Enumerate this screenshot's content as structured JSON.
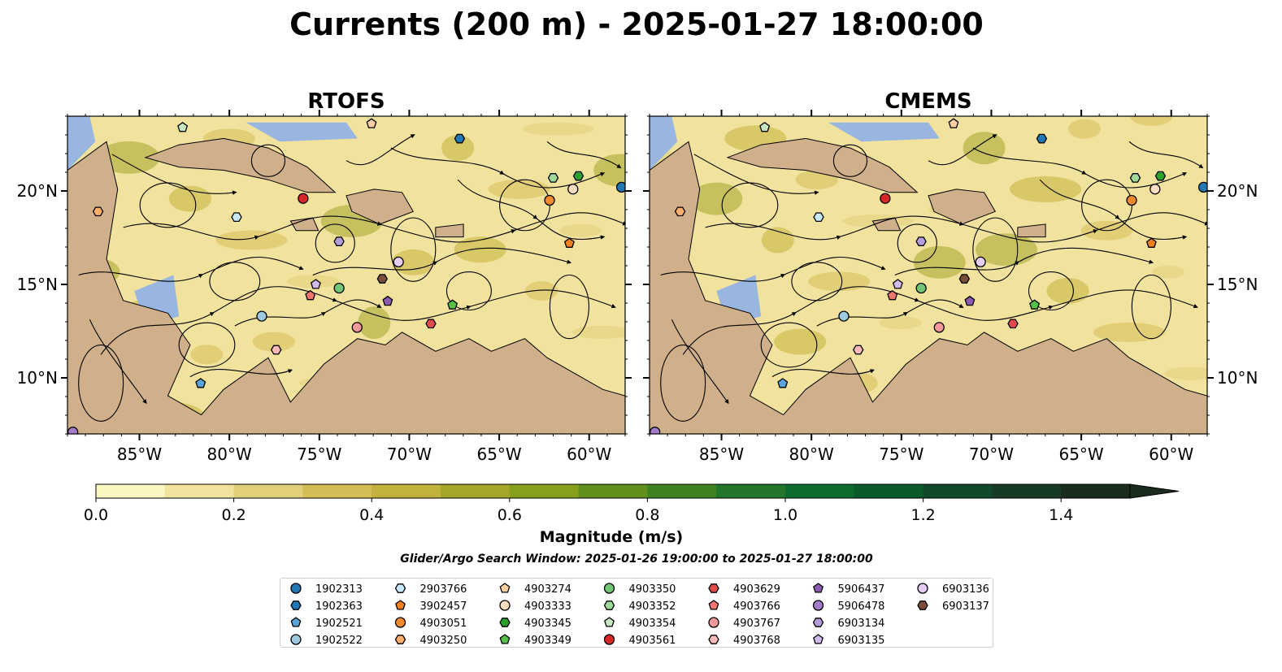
{
  "title": "Currents (200 m) - 2025-01-27 18:00:00",
  "colors": {
    "ocean": "#98b6e0",
    "land": "#cfb08a",
    "streamline": "#000000",
    "colorbar": [
      "#fbf5c2",
      "#f1e39e",
      "#e2cf7a",
      "#d3be55",
      "#c2b23d",
      "#a3a62a",
      "#86a01b",
      "#63901d",
      "#3f8320",
      "#23762a",
      "#0e6b2e",
      "#0b5a2c",
      "#104a2b",
      "#173a27",
      "#1a2c1e"
    ]
  },
  "maps": [
    {
      "title": "RTOFS"
    },
    {
      "title": "CMEMS"
    }
  ],
  "axes": {
    "lon_ticks": [
      "85°W",
      "80°W",
      "75°W",
      "70°W",
      "65°W",
      "60°W"
    ],
    "lat_ticks": [
      "20°N",
      "15°N",
      "10°N"
    ]
  },
  "colorbar": {
    "label": "Magnitude (m/s)",
    "ticks": [
      "0.0",
      "0.2",
      "0.4",
      "0.6",
      "0.8",
      "1.0",
      "1.2",
      "1.4"
    ]
  },
  "subtitle": "Glider/Argo Search Window: 2025-01-26 19:00:00 to 2025-01-27 18:00:00",
  "chart_data": {
    "type": "streamline-map",
    "panels": [
      "RTOFS",
      "CMEMS"
    ],
    "lon_range": [
      -89,
      -58
    ],
    "lat_range": [
      7,
      24
    ],
    "magnitude_range": [
      0,
      1.5
    ],
    "magnitude_levels": [
      0.0,
      0.1,
      0.2,
      0.3,
      0.4,
      0.5,
      0.6,
      0.7,
      0.8,
      0.9,
      1.0,
      1.1,
      1.2,
      1.3,
      1.4,
      1.5
    ],
    "floats": [
      {
        "id": "1902313",
        "color": "#1f77b4",
        "marker": "circle",
        "lon": -58.2,
        "lat": 20.2
      },
      {
        "id": "1902363",
        "color": "#1f77b4",
        "marker": "hexagon",
        "lon": -67.2,
        "lat": 22.8
      },
      {
        "id": "1902521",
        "color": "#5ba3d9",
        "marker": "pentagon",
        "lon": -81.6,
        "lat": 9.7
      },
      {
        "id": "1902522",
        "color": "#9ecae1",
        "marker": "circle",
        "lon": -78.2,
        "lat": 13.3
      },
      {
        "id": "2903766",
        "color": "#c6e8f7",
        "marker": "hexagon",
        "lon": -79.6,
        "lat": 18.6
      },
      {
        "id": "3902457",
        "color": "#f07f1c",
        "marker": "pentagon",
        "lon": -61.1,
        "lat": 17.2
      },
      {
        "id": "4903051",
        "color": "#f08a2c",
        "marker": "circle",
        "lon": -62.2,
        "lat": 19.5
      },
      {
        "id": "4903250",
        "color": "#fdae6b",
        "marker": "hexagon",
        "lon": -87.3,
        "lat": 18.9
      },
      {
        "id": "4903274",
        "color": "#fdd0a2",
        "marker": "pentagon",
        "lon": -72.1,
        "lat": 23.6
      },
      {
        "id": "4903333",
        "color": "#feddc0",
        "marker": "circle",
        "lon": -60.9,
        "lat": 20.1
      },
      {
        "id": "4903345",
        "color": "#2ca02c",
        "marker": "hexagon",
        "lon": -60.6,
        "lat": 20.8
      },
      {
        "id": "4903349",
        "color": "#55c045",
        "marker": "pentagon",
        "lon": -67.6,
        "lat": 13.9
      },
      {
        "id": "4903350",
        "color": "#74c476",
        "marker": "circle",
        "lon": -73.9,
        "lat": 14.8
      },
      {
        "id": "4903352",
        "color": "#a1d99b",
        "marker": "hexagon",
        "lon": -62.0,
        "lat": 20.7
      },
      {
        "id": "4903354",
        "color": "#c7e9c0",
        "marker": "pentagon",
        "lon": -82.6,
        "lat": 23.4
      },
      {
        "id": "4903561",
        "color": "#d62728",
        "marker": "circle",
        "lon": -75.9,
        "lat": 19.6
      },
      {
        "id": "4903629",
        "color": "#e34a4a",
        "marker": "hexagon",
        "lon": -68.8,
        "lat": 12.9
      },
      {
        "id": "4903766",
        "color": "#f2766f",
        "marker": "pentagon",
        "lon": -75.5,
        "lat": 14.4
      },
      {
        "id": "4903767",
        "color": "#f4989b",
        "marker": "circle",
        "lon": -72.9,
        "lat": 12.7
      },
      {
        "id": "4903768",
        "color": "#fcbbb9",
        "marker": "hexagon",
        "lon": -77.4,
        "lat": 11.5
      },
      {
        "id": "5906437",
        "color": "#8c5ab0",
        "marker": "pentagon",
        "lon": -71.2,
        "lat": 14.1
      },
      {
        "id": "5906478",
        "color": "#a37dc8",
        "marker": "circle",
        "lon": -88.7,
        "lat": 7.1
      },
      {
        "id": "6903134",
        "color": "#b39ddb",
        "marker": "hexagon",
        "lon": -73.9,
        "lat": 17.3
      },
      {
        "id": "6903135",
        "color": "#d2b9ee",
        "marker": "pentagon",
        "lon": -75.2,
        "lat": 15.0
      },
      {
        "id": "6903136",
        "color": "#e6cbf5",
        "marker": "circle",
        "lon": -70.6,
        "lat": 16.2
      },
      {
        "id": "6903137",
        "color": "#7a4f3a",
        "marker": "hexagon",
        "lon": -71.5,
        "lat": 15.3
      }
    ]
  }
}
